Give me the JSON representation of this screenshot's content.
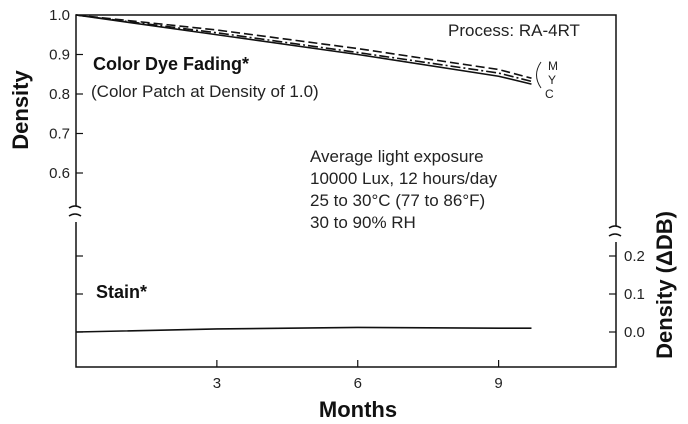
{
  "chart_data": {
    "type": "line",
    "xlabel": "Months",
    "ylabel": "Density",
    "ylabel_right": "Density (ΔDB)",
    "xlim": [
      0,
      11.5
    ],
    "x_ticks": [
      "3",
      "6",
      "9"
    ],
    "upper_panel": {
      "title": "Color Dye Fading*",
      "subtitle": "(Color Patch at Density of 1.0)",
      "ylim": [
        0.5,
        1.0
      ],
      "y_ticks": [
        "1.0",
        "0.9",
        "0.8",
        "0.7",
        "0.6"
      ],
      "series": [
        {
          "name": "M",
          "style": "dash",
          "x": [
            0,
            3,
            6,
            9,
            9.7
          ],
          "y": [
            1.0,
            0.962,
            0.915,
            0.862,
            0.84
          ]
        },
        {
          "name": "Y",
          "style": "dashdot",
          "x": [
            0,
            3,
            6,
            9,
            9.7
          ],
          "y": [
            1.0,
            0.955,
            0.905,
            0.853,
            0.832
          ]
        },
        {
          "name": "C",
          "style": "solid",
          "x": [
            0,
            3,
            6,
            9,
            9.7
          ],
          "y": [
            1.0,
            0.95,
            0.9,
            0.845,
            0.825
          ]
        }
      ]
    },
    "lower_panel": {
      "title": "Stain*",
      "ylim": [
        -0.05,
        0.25
      ],
      "y_ticks": [
        "0.2",
        "0.1",
        "0.0"
      ],
      "series": [
        {
          "name": "Stain",
          "style": "solid",
          "x": [
            0,
            3,
            6,
            9,
            9.7
          ],
          "y": [
            0.0,
            0.008,
            0.012,
            0.01,
            0.01
          ]
        }
      ]
    },
    "annotations": {
      "process": "Process: RA-4RT",
      "conditions": [
        "Average light exposure",
        "10000 Lux, 12 hours/day",
        "25 to 30°C (77 to 86°F)",
        "30 to 90% RH"
      ]
    }
  }
}
